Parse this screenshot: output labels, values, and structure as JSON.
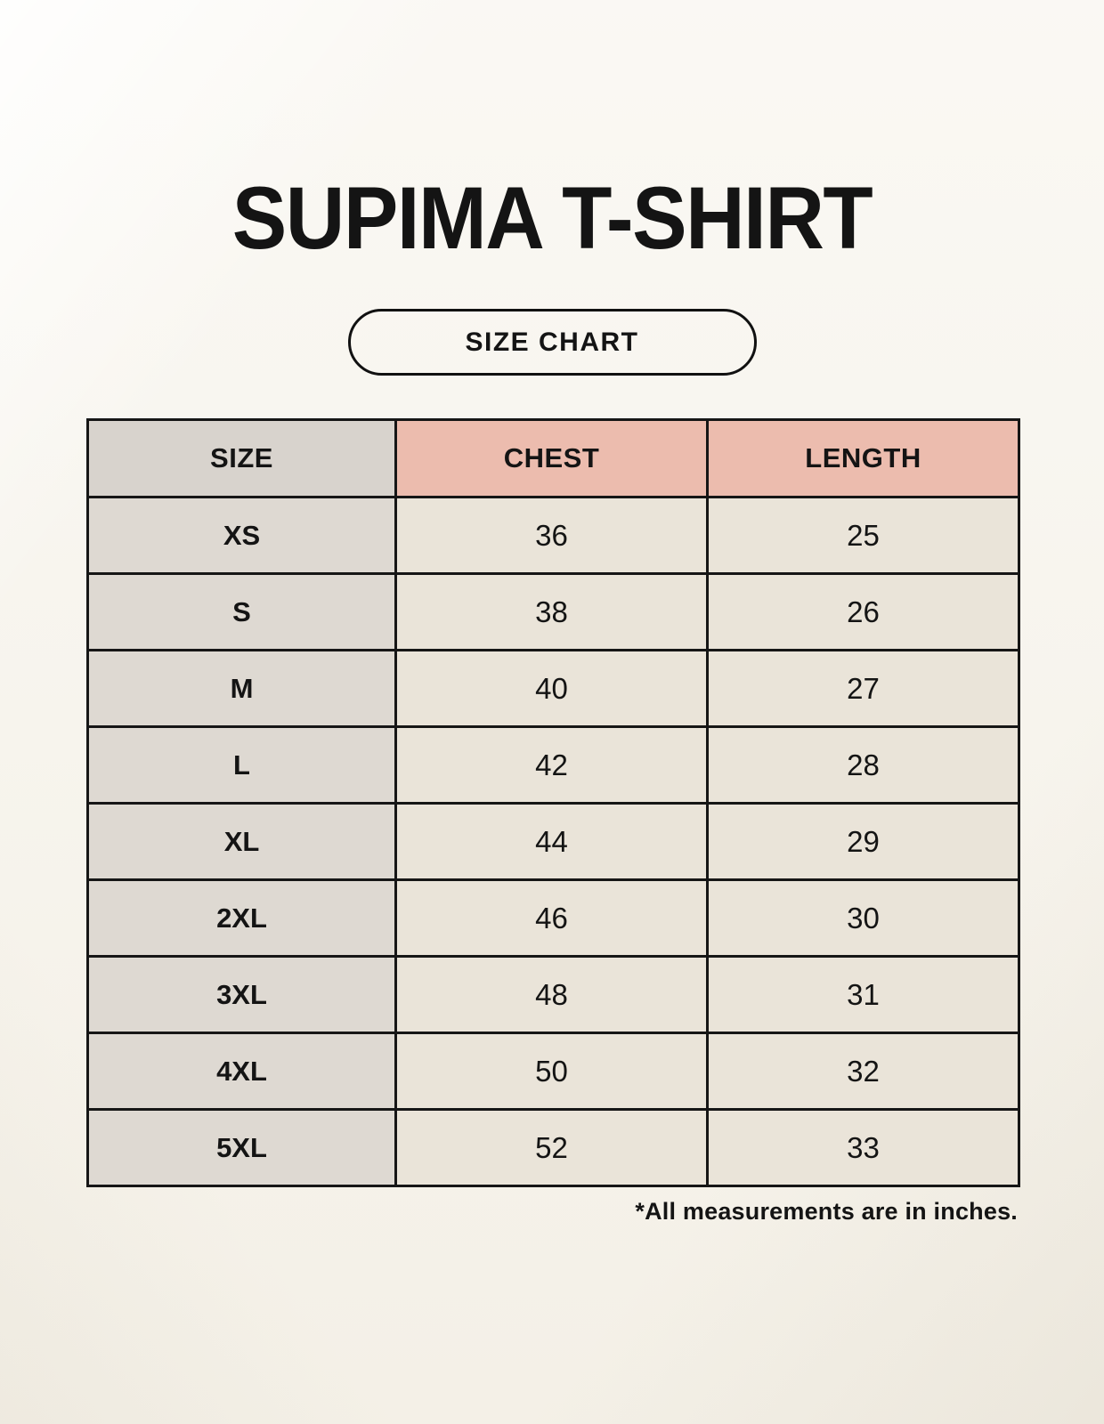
{
  "page": {
    "title": "SUPIMA T-SHIRT",
    "size_chart_label": "SIZE CHART",
    "footnote": "*All measurements are in inches."
  },
  "colors": {
    "background": "#f7f4ec",
    "header_size_bg": "#d8d3cd",
    "header_measure_bg": "#ecbcae",
    "size_column_bg": "#ded9d2",
    "value_cell_bg": "#eae4d9",
    "border": "#161616",
    "text": "#141414"
  },
  "chart_data": {
    "type": "table",
    "title": "SUPIMA T-SHIRT",
    "columns": [
      "SIZE",
      "CHEST",
      "LENGTH"
    ],
    "units": "inches",
    "rows": [
      {
        "size": "XS",
        "chest": 36,
        "length": 25
      },
      {
        "size": "S",
        "chest": 38,
        "length": 26
      },
      {
        "size": "M",
        "chest": 40,
        "length": 27
      },
      {
        "size": "L",
        "chest": 42,
        "length": 28
      },
      {
        "size": "XL",
        "chest": 44,
        "length": 29
      },
      {
        "size": "2XL",
        "chest": 46,
        "length": 30
      },
      {
        "size": "3XL",
        "chest": 48,
        "length": 31
      },
      {
        "size": "4XL",
        "chest": 50,
        "length": 32
      },
      {
        "size": "5XL",
        "chest": 52,
        "length": 33
      }
    ]
  }
}
